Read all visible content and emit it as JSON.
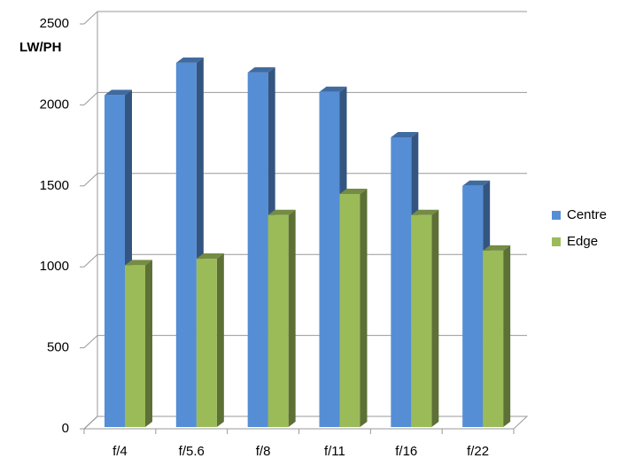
{
  "chart_data": {
    "type": "bar3d",
    "y_axis_label": "LW/PH",
    "categories": [
      "f/4",
      "f/5.6",
      "f/8",
      "f/11",
      "f/16",
      "f/22"
    ],
    "series": [
      {
        "name": "Centre",
        "color": "#558ed5",
        "values": [
          2060,
          2260,
          2200,
          2080,
          1800,
          1500
        ]
      },
      {
        "name": "Edge",
        "color": "#9bbb59",
        "values": [
          1010,
          1050,
          1320,
          1450,
          1320,
          1100
        ]
      }
    ],
    "ylim": [
      0,
      2500
    ],
    "yticks": [
      0,
      500,
      1000,
      1500,
      2000,
      2500
    ],
    "grid": true,
    "legend": "right"
  }
}
